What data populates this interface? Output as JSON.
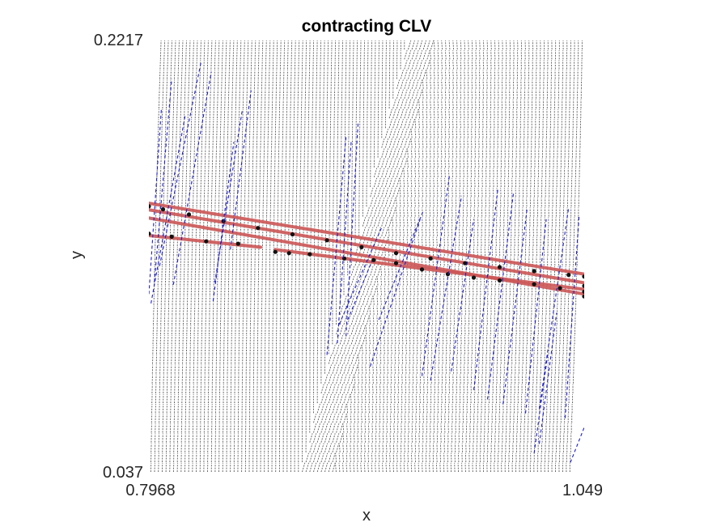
{
  "chart_data": {
    "type": "scatter",
    "title": "contracting CLV",
    "xlabel": "x",
    "ylabel": "y",
    "xlim": [
      0.7968,
      1.049
    ],
    "ylim": [
      0.037,
      0.2217
    ],
    "x_ticks": [
      "0.7968",
      "1.049"
    ],
    "y_ticks": [
      "0.037",
      "0.2217"
    ],
    "grid": false,
    "series": [
      {
        "color": "#5a5a5a",
        "style": "dense-vector-field",
        "grid_columns": 115,
        "tilt_left_region": 0.022,
        "shear_band": {
          "bottom_x": [
            0.885,
            0.904
          ],
          "top_x": [
            0.947,
            0.962
          ]
        }
      },
      {
        "color": "#cc5555",
        "style": "thick-line",
        "segments": [
          {
            "x": [
              0.7968,
              1.049
            ],
            "y": [
              0.1518,
              0.1215
            ]
          },
          {
            "x": [
              0.7968,
              1.049
            ],
            "y": [
              0.149,
              0.1178
            ]
          },
          {
            "x": [
              0.7968,
              1.049
            ],
            "y": [
              0.1455,
              0.113
            ]
          },
          {
            "x": [
              0.7968,
              0.8615
            ],
            "y": [
              0.138,
              0.133
            ]
          },
          {
            "x": [
              0.87,
              1.049
            ],
            "y": [
              0.132,
              0.115
            ]
          }
        ]
      },
      {
        "color": "#111111",
        "style": "dots",
        "points": [
          {
            "x": 0.7968,
            "y": 0.1505
          },
          {
            "x": 0.805,
            "y": 0.1492
          },
          {
            "x": 0.82,
            "y": 0.147
          },
          {
            "x": 0.84,
            "y": 0.1442
          },
          {
            "x": 0.86,
            "y": 0.1412
          },
          {
            "x": 0.88,
            "y": 0.1385
          },
          {
            "x": 0.9,
            "y": 0.136
          },
          {
            "x": 0.92,
            "y": 0.133
          },
          {
            "x": 0.94,
            "y": 0.1305
          },
          {
            "x": 0.96,
            "y": 0.1282
          },
          {
            "x": 0.98,
            "y": 0.1262
          },
          {
            "x": 1.0,
            "y": 0.1245
          },
          {
            "x": 1.02,
            "y": 0.1228
          },
          {
            "x": 1.04,
            "y": 0.1212
          },
          {
            "x": 1.049,
            "y": 0.1205
          },
          {
            "x": 0.7968,
            "y": 0.1388
          },
          {
            "x": 0.81,
            "y": 0.1375
          },
          {
            "x": 0.83,
            "y": 0.1355
          },
          {
            "x": 0.8485,
            "y": 0.1345
          },
          {
            "x": 0.87,
            "y": 0.131
          },
          {
            "x": 0.878,
            "y": 0.1305
          },
          {
            "x": 0.89,
            "y": 0.13
          },
          {
            "x": 0.91,
            "y": 0.1282
          },
          {
            "x": 0.927,
            "y": 0.1275
          },
          {
            "x": 0.94,
            "y": 0.1262
          },
          {
            "x": 0.955,
            "y": 0.1235
          },
          {
            "x": 0.97,
            "y": 0.1215
          },
          {
            "x": 0.985,
            "y": 0.12
          },
          {
            "x": 1.0,
            "y": 0.1188
          },
          {
            "x": 1.02,
            "y": 0.1172
          },
          {
            "x": 1.035,
            "y": 0.1155
          },
          {
            "x": 1.049,
            "y": 0.114
          },
          {
            "x": 1.049,
            "y": 0.1165
          },
          {
            "x": 1.049,
            "y": 0.112
          }
        ]
      },
      {
        "color": "#1f1fc8",
        "style": "dashed-lines",
        "segments": [
          {
            "x": [
              0.7968,
              0.804
            ],
            "y": [
              0.113,
              0.192
            ]
          },
          {
            "x": [
              0.8,
              0.81
            ],
            "y": [
              0.118,
              0.205
            ]
          },
          {
            "x": [
              0.798,
              0.818
            ],
            "y": [
              0.109,
              0.19
            ]
          },
          {
            "x": [
              0.811,
              0.833
            ],
            "y": [
              0.117,
              0.208
            ]
          },
          {
            "x": [
              0.803,
              0.827
            ],
            "y": [
              0.125,
              0.212
            ]
          },
          {
            "x": [
              0.834,
              0.846
            ],
            "y": [
              0.11,
              0.178
            ]
          },
          {
            "x": [
              0.835,
              0.851
            ],
            "y": [
              0.118,
              0.192
            ]
          },
          {
            "x": [
              0.844,
              0.856
            ],
            "y": [
              0.132,
              0.2
            ]
          },
          {
            "x": [
              0.9,
              0.911
            ],
            "y": [
              0.087,
              0.18
            ]
          },
          {
            "x": [
              0.906,
              0.914
            ],
            "y": [
              0.092,
              0.178
            ]
          },
          {
            "x": [
              0.911,
              0.918
            ],
            "y": [
              0.095,
              0.186
            ]
          },
          {
            "x": [
              0.907,
              0.932
            ],
            "y": [
              0.1,
              0.142
            ]
          },
          {
            "x": [
              0.912,
              0.926
            ],
            "y": [
              0.102,
              0.127
            ]
          },
          {
            "x": [
              0.925,
              0.954
            ],
            "y": [
              0.082,
              0.145
            ]
          },
          {
            "x": [
              0.93,
              0.956
            ],
            "y": [
              0.102,
              0.149
            ]
          },
          {
            "x": [
              0.955,
              0.971
            ],
            "y": [
              0.078,
              0.164
            ]
          },
          {
            "x": [
              0.96,
              0.978
            ],
            "y": [
              0.076,
              0.155
            ]
          },
          {
            "x": [
              0.972,
              0.985
            ],
            "y": [
              0.08,
              0.145
            ]
          },
          {
            "x": [
              0.985,
              0.999
            ],
            "y": [
              0.072,
              0.158
            ]
          },
          {
            "x": [
              0.993,
              1.008
            ],
            "y": [
              0.068,
              0.156
            ]
          },
          {
            "x": [
              1.002,
              1.016
            ],
            "y": [
              0.066,
              0.15
            ]
          },
          {
            "x": [
              1.015,
              1.027
            ],
            "y": [
              0.062,
              0.145
            ]
          },
          {
            "x": [
              1.023,
              1.04
            ],
            "y": [
              0.064,
              0.15
            ]
          },
          {
            "x": [
              1.038,
              1.046
            ],
            "y": [
              0.06,
              0.146
            ]
          },
          {
            "x": [
              1.02,
              1.028
            ],
            "y": [
              0.045,
              0.088
            ]
          },
          {
            "x": [
              1.023,
              1.033
            ],
            "y": [
              0.049,
              0.105
            ]
          },
          {
            "x": [
              1.041,
              1.049
            ],
            "y": [
              0.041,
              0.056
            ]
          }
        ]
      }
    ]
  }
}
